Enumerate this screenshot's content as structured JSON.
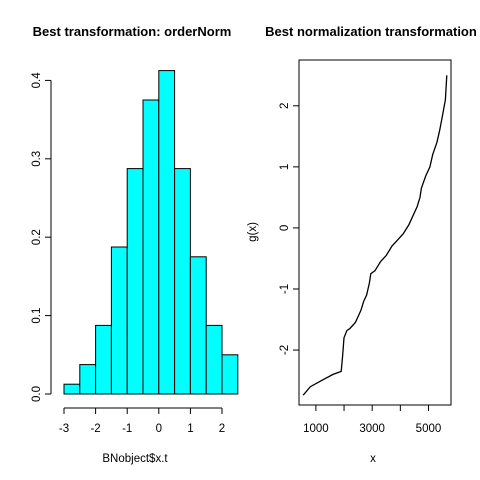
{
  "chart_data": [
    {
      "type": "bar",
      "title": "Best transformation: orderNorm",
      "xlabel": "BNobject$x.t",
      "ylabel": "",
      "bin_edges": [
        -3,
        -2.5,
        -2,
        -1.5,
        -1,
        -0.5,
        0,
        0.5,
        1,
        1.5,
        2,
        2.5
      ],
      "values": [
        0.0125,
        0.0375,
        0.0875,
        0.1875,
        0.2875,
        0.375,
        0.4125,
        0.2875,
        0.175,
        0.0875,
        0.05
      ],
      "xticks": [
        "-3",
        "-2",
        "-1",
        "0",
        "1",
        "2"
      ],
      "yticks": [
        "0.0",
        "0.1",
        "0.2",
        "0.3",
        "0.4"
      ],
      "ylim": [
        0,
        0.42
      ],
      "fill_color": "#00FFFF",
      "edge_color": "#000000"
    },
    {
      "type": "line",
      "title": "Best normalization transformation",
      "xlabel": "x",
      "ylabel": "g(x)",
      "xlim": [
        400,
        5800
      ],
      "ylim": [
        -2.9,
        2.75
      ],
      "xticks": [
        "1000",
        "3000",
        "5000"
      ],
      "yticks": [
        "-2",
        "-1",
        "0",
        "1",
        "2"
      ],
      "x": [
        550,
        800,
        1200,
        1600,
        1900,
        1950,
        2000,
        2100,
        2200,
        2400,
        2600,
        2700,
        2800,
        2900,
        2950,
        3100,
        3300,
        3500,
        3700,
        3900,
        4100,
        4300,
        4450,
        4600,
        4700,
        4750,
        4900,
        5050,
        5150,
        5300,
        5400,
        5500,
        5600,
        5650
      ],
      "y": [
        -2.74,
        -2.6,
        -2.5,
        -2.4,
        -2.35,
        -2.1,
        -1.8,
        -1.68,
        -1.65,
        -1.55,
        -1.35,
        -1.2,
        -1.1,
        -0.9,
        -0.75,
        -0.7,
        -0.55,
        -0.45,
        -0.3,
        -0.2,
        -0.1,
        0.05,
        0.2,
        0.35,
        0.5,
        0.65,
        0.85,
        1.0,
        1.2,
        1.4,
        1.6,
        1.85,
        2.1,
        2.5
      ],
      "line_color": "#000000"
    }
  ]
}
